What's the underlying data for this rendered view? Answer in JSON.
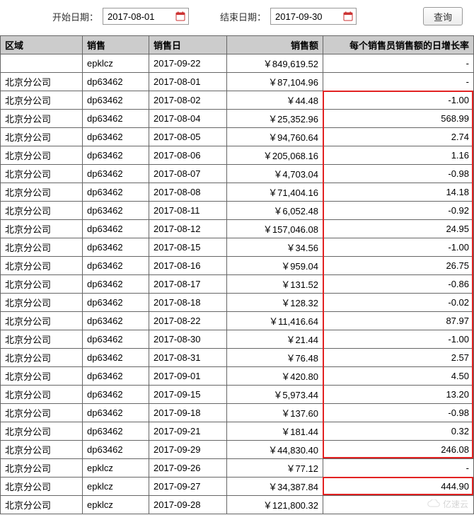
{
  "toolbar": {
    "start_label": "开始日期：",
    "end_label": "结束日期：",
    "start_value": "2017-08-01",
    "end_value": "2017-09-30",
    "query_label": "查询"
  },
  "columns": [
    "区域",
    "销售",
    "销售日",
    "销售额",
    "每个销售员销售额的日增长率"
  ],
  "column_align": [
    "left",
    "left",
    "left",
    "right",
    "right"
  ],
  "rows": [
    {
      "area": "",
      "seller": "epklcz",
      "date": "2017-09-22",
      "amount": "￥849,619.52",
      "growth": "-",
      "hl": false
    },
    {
      "area": "北京分公司",
      "seller": "dp63462",
      "date": "2017-08-01",
      "amount": "￥87,104.96",
      "growth": "-",
      "hl": false
    },
    {
      "area": "北京分公司",
      "seller": "dp63462",
      "date": "2017-08-02",
      "amount": "￥44.48",
      "growth": "-1.00",
      "hl": true
    },
    {
      "area": "北京分公司",
      "seller": "dp63462",
      "date": "2017-08-04",
      "amount": "￥25,352.96",
      "growth": "568.99",
      "hl": true
    },
    {
      "area": "北京分公司",
      "seller": "dp63462",
      "date": "2017-08-05",
      "amount": "￥94,760.64",
      "growth": "2.74",
      "hl": true
    },
    {
      "area": "北京分公司",
      "seller": "dp63462",
      "date": "2017-08-06",
      "amount": "￥205,068.16",
      "growth": "1.16",
      "hl": true
    },
    {
      "area": "北京分公司",
      "seller": "dp63462",
      "date": "2017-08-07",
      "amount": "￥4,703.04",
      "growth": "-0.98",
      "hl": true
    },
    {
      "area": "北京分公司",
      "seller": "dp63462",
      "date": "2017-08-08",
      "amount": "￥71,404.16",
      "growth": "14.18",
      "hl": true
    },
    {
      "area": "北京分公司",
      "seller": "dp63462",
      "date": "2017-08-11",
      "amount": "￥6,052.48",
      "growth": "-0.92",
      "hl": true
    },
    {
      "area": "北京分公司",
      "seller": "dp63462",
      "date": "2017-08-12",
      "amount": "￥157,046.08",
      "growth": "24.95",
      "hl": true
    },
    {
      "area": "北京分公司",
      "seller": "dp63462",
      "date": "2017-08-15",
      "amount": "￥34.56",
      "growth": "-1.00",
      "hl": true
    },
    {
      "area": "北京分公司",
      "seller": "dp63462",
      "date": "2017-08-16",
      "amount": "￥959.04",
      "growth": "26.75",
      "hl": true
    },
    {
      "area": "北京分公司",
      "seller": "dp63462",
      "date": "2017-08-17",
      "amount": "￥131.52",
      "growth": "-0.86",
      "hl": true
    },
    {
      "area": "北京分公司",
      "seller": "dp63462",
      "date": "2017-08-18",
      "amount": "￥128.32",
      "growth": "-0.02",
      "hl": true
    },
    {
      "area": "北京分公司",
      "seller": "dp63462",
      "date": "2017-08-22",
      "amount": "￥11,416.64",
      "growth": "87.97",
      "hl": true
    },
    {
      "area": "北京分公司",
      "seller": "dp63462",
      "date": "2017-08-30",
      "amount": "￥21.44",
      "growth": "-1.00",
      "hl": true
    },
    {
      "area": "北京分公司",
      "seller": "dp63462",
      "date": "2017-08-31",
      "amount": "￥76.48",
      "growth": "2.57",
      "hl": true
    },
    {
      "area": "北京分公司",
      "seller": "dp63462",
      "date": "2017-09-01",
      "amount": "￥420.80",
      "growth": "4.50",
      "hl": true
    },
    {
      "area": "北京分公司",
      "seller": "dp63462",
      "date": "2017-09-15",
      "amount": "￥5,973.44",
      "growth": "13.20",
      "hl": true
    },
    {
      "area": "北京分公司",
      "seller": "dp63462",
      "date": "2017-09-18",
      "amount": "￥137.60",
      "growth": "-0.98",
      "hl": true
    },
    {
      "area": "北京分公司",
      "seller": "dp63462",
      "date": "2017-09-21",
      "amount": "￥181.44",
      "growth": "0.32",
      "hl": true
    },
    {
      "area": "北京分公司",
      "seller": "dp63462",
      "date": "2017-09-29",
      "amount": "￥44,830.40",
      "growth": "246.08",
      "hl": true
    },
    {
      "area": "北京分公司",
      "seller": "epklcz",
      "date": "2017-09-26",
      "amount": "￥77.12",
      "growth": "-",
      "hl": false
    },
    {
      "area": "北京分公司",
      "seller": "epklcz",
      "date": "2017-09-27",
      "amount": "￥34,387.84",
      "growth": "444.90",
      "hl": true
    },
    {
      "area": "北京分公司",
      "seller": "epklcz",
      "date": "2017-09-28",
      "amount": "￥121,800.32",
      "growth": "",
      "hl": false
    }
  ],
  "watermark": "亿速云",
  "highlight_color": "#e22222"
}
